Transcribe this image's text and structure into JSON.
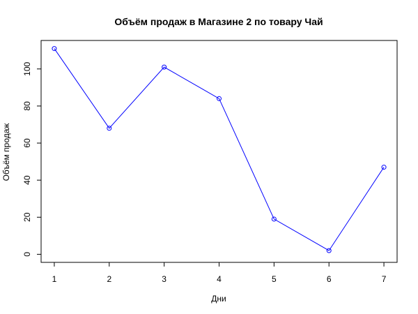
{
  "chart_data": {
    "type": "line",
    "title": "Объём продаж в Магазине 2 по товару Чай",
    "xlabel": "Дни",
    "ylabel": "Объём продаж",
    "x": [
      1,
      2,
      3,
      4,
      5,
      6,
      7
    ],
    "series": [
      {
        "values": [
          111,
          68,
          101,
          84,
          19,
          2,
          47
        ],
        "color": "#0000ff"
      }
    ],
    "xticks": [
      1,
      2,
      3,
      4,
      5,
      6,
      7
    ],
    "yticks": [
      0,
      20,
      40,
      60,
      80,
      100
    ],
    "xlim": [
      0.76,
      7.24
    ],
    "ylim": [
      -4.36,
      115.36
    ],
    "grid": false,
    "marker": "open-circle"
  }
}
